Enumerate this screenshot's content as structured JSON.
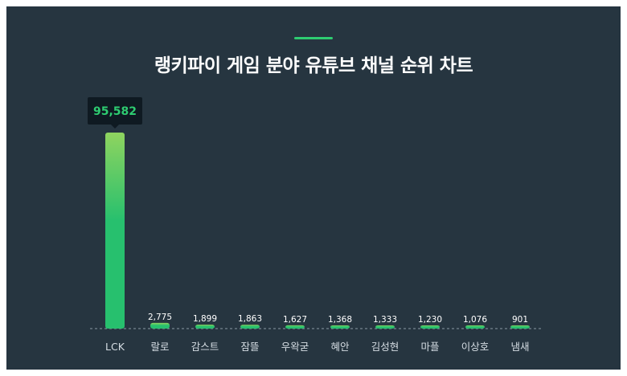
{
  "chart_data": {
    "type": "bar",
    "title": "랭키파이 게임 분야 유튜브 채널 순위 차트",
    "categories": [
      "LCK",
      "랄로",
      "감스트",
      "잠뜰",
      "우왁굳",
      "혜안",
      "김성현",
      "마플",
      "이상호",
      "냄새"
    ],
    "values": [
      95582,
      2775,
      1899,
      1863,
      1627,
      1368,
      1333,
      1230,
      1076,
      901
    ],
    "value_labels": [
      "95,582",
      "2,775",
      "1,899",
      "1,863",
      "1,627",
      "1,368",
      "1,333",
      "1,230",
      "1,076",
      "901"
    ],
    "highlight": {
      "index": 0,
      "label": "95,582"
    },
    "ylim": [
      0,
      95582
    ],
    "grid": false,
    "colors": {
      "background": "#263540",
      "bar_top": "#8fd45f",
      "bar_bottom": "#27c06e",
      "accent": "#2ecc71",
      "tooltip_bg": "#0f1a22",
      "baseline": "#8a99a5"
    }
  }
}
